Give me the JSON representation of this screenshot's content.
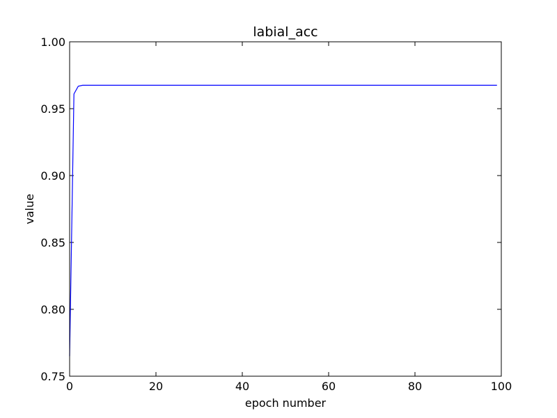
{
  "chart_data": {
    "type": "line",
    "title": "labial_acc",
    "xlabel": "epoch number",
    "ylabel": "value",
    "xlim": [
      0,
      100
    ],
    "ylim": [
      0.75,
      1.0
    ],
    "grid": false,
    "x_ticks": [
      "0",
      "20",
      "40",
      "60",
      "80",
      "100"
    ],
    "y_ticks": [
      "0.75",
      "0.80",
      "0.85",
      "0.90",
      "0.95",
      "1.00"
    ],
    "series": [
      {
        "color": "#0000ff",
        "x": [
          0,
          1,
          2,
          3,
          4,
          5,
          10,
          20,
          30,
          40,
          50,
          60,
          70,
          80,
          90,
          99
        ],
        "y": [
          0.765,
          0.961,
          0.9668,
          0.9675,
          0.9675,
          0.9675,
          0.9675,
          0.9675,
          0.9675,
          0.9675,
          0.9675,
          0.9675,
          0.9675,
          0.9675,
          0.9675,
          0.9675
        ]
      }
    ]
  }
}
